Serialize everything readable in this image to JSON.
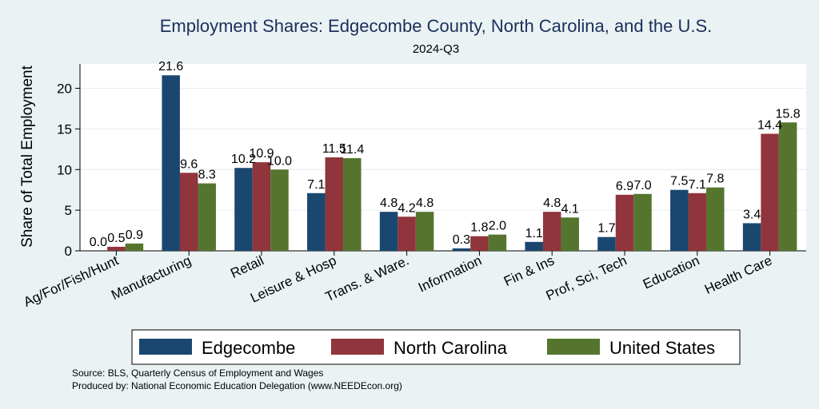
{
  "chart_data": {
    "type": "bar",
    "title": "Employment Shares: Edgecombe County, North Carolina, and the U.S.",
    "subtitle": "2024-Q3",
    "ylabel": "Share of Total Employment",
    "xlabel": "",
    "ylim": [
      0,
      23
    ],
    "yticks": [
      0,
      5,
      10,
      15,
      20
    ],
    "grid": true,
    "legend_position": "bottom",
    "categories": [
      "Ag/For/Fish/Hunt",
      "Manufacturing",
      "Retail",
      "Leisure & Hosp",
      "Trans. & Ware.",
      "Information",
      "Fin & Ins",
      "Prof, Sci, Tech",
      "Education",
      "Health Care"
    ],
    "series": [
      {
        "name": "Edgecombe",
        "color": "#1a476f",
        "values": [
          0.0,
          21.6,
          10.2,
          7.1,
          4.8,
          0.3,
          1.1,
          1.7,
          7.5,
          3.4
        ],
        "labels": [
          "0.0",
          "21.6",
          "10.2",
          "7.1",
          "4.8",
          "0.3",
          "1.1",
          "1.7",
          "7.5",
          "3.4"
        ]
      },
      {
        "name": "North Carolina",
        "color": "#90353b",
        "values": [
          0.5,
          9.6,
          10.9,
          11.5,
          4.2,
          1.8,
          4.8,
          6.9,
          7.1,
          14.4
        ],
        "labels": [
          "0.5",
          "9.6",
          "10.9",
          "11.5",
          "4.2",
          "1.8",
          "4.8",
          "6.9",
          "7.1",
          "14.4"
        ]
      },
      {
        "name": "United States",
        "color": "#55752f",
        "values": [
          0.9,
          8.3,
          10.0,
          11.4,
          4.8,
          2.0,
          4.1,
          7.0,
          7.8,
          15.8
        ],
        "labels": [
          "0.9",
          "8.3",
          "10.0",
          "11.4",
          "4.8",
          "2.0",
          "4.1",
          "7.0",
          "7.8",
          "15.8"
        ]
      }
    ]
  },
  "notes": {
    "source": "Source: BLS, Quarterly Census of Employment and Wages",
    "produced_by": "Produced by: National Economic Education Delegation (www.NEEDEcon.org)"
  }
}
